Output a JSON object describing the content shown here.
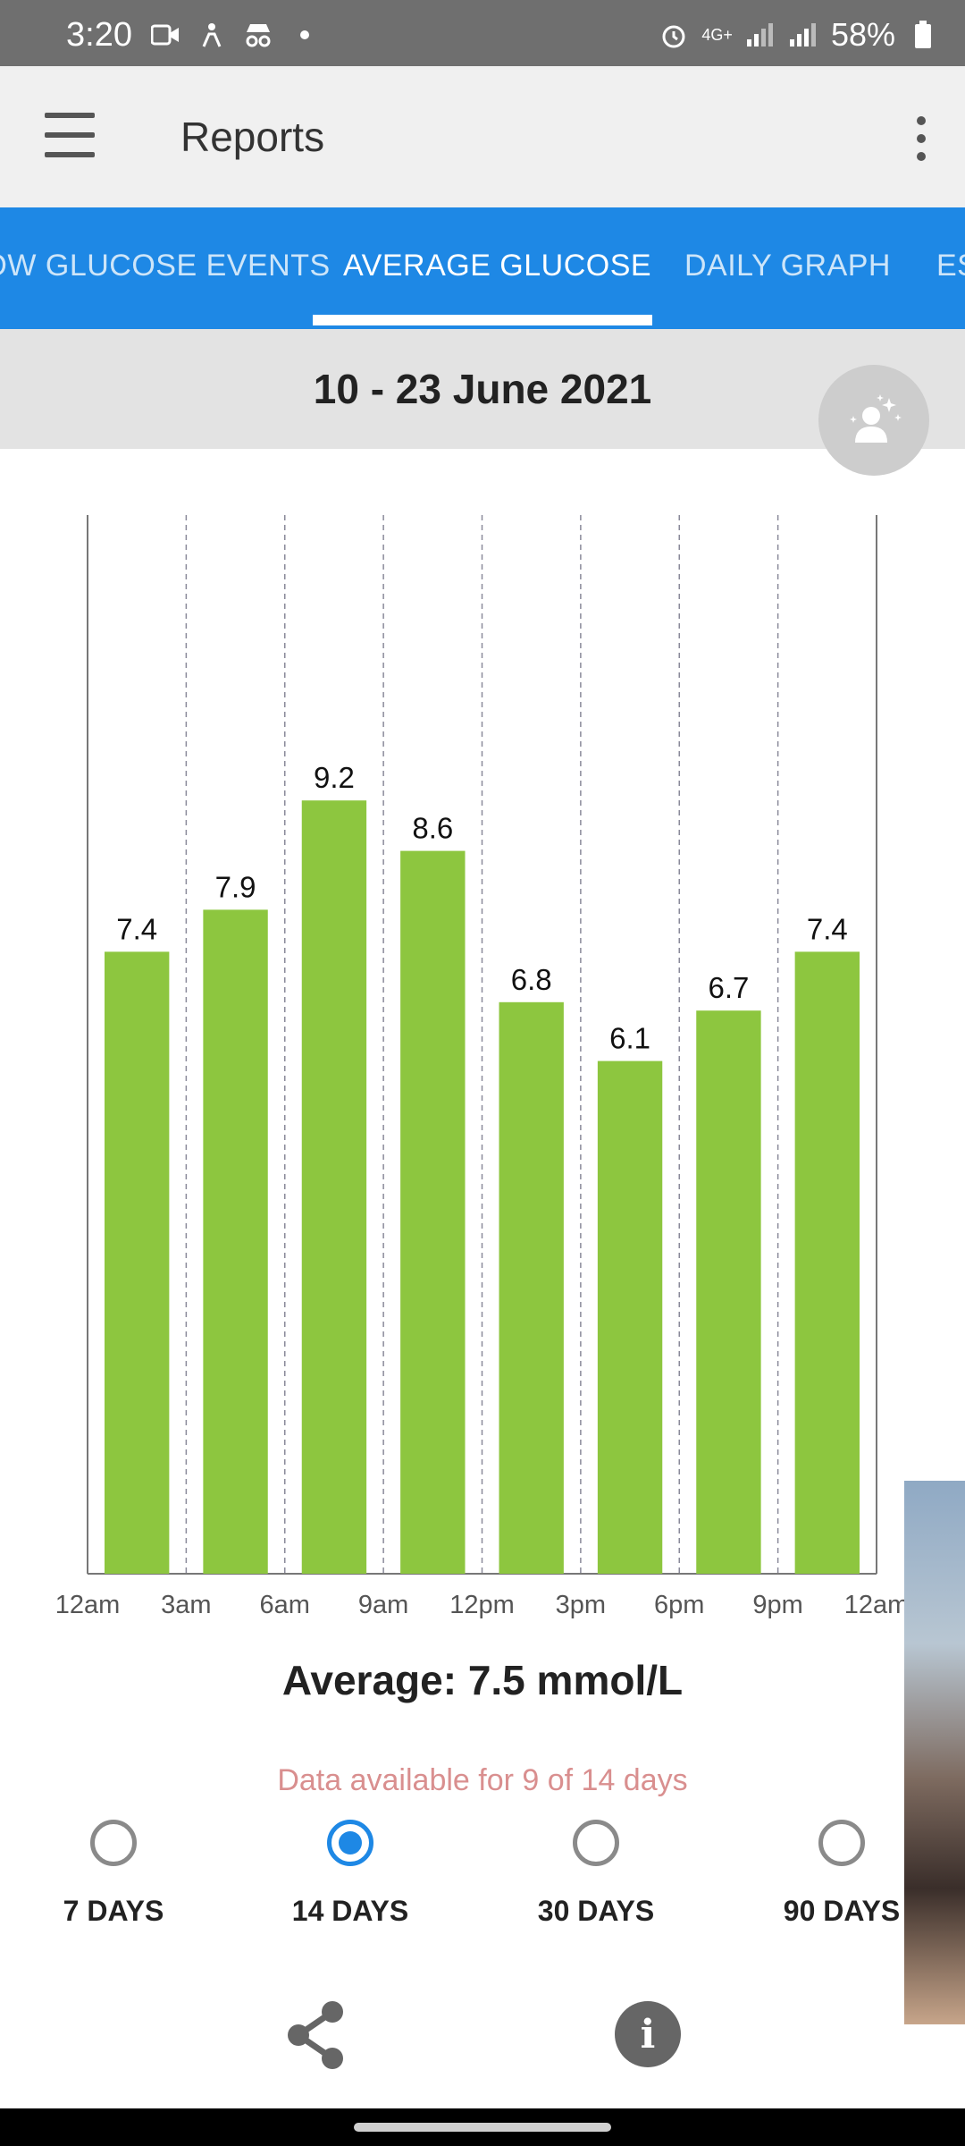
{
  "status_bar": {
    "time": "3:20",
    "battery": "58%",
    "network": "4G+"
  },
  "app_bar": {
    "title": "Reports"
  },
  "tabs": [
    {
      "label": "LOW GLUCOSE EVENTS",
      "active": false
    },
    {
      "label": "AVERAGE GLUCOSE",
      "active": true
    },
    {
      "label": "DAILY GRAPH",
      "active": false
    },
    {
      "label": "ES",
      "active": false
    }
  ],
  "date_range": "10 - 23 June 2021",
  "chart_data": {
    "type": "bar",
    "categories": [
      "12am-3am",
      "3am-6am",
      "6am-9am",
      "9am-12pm",
      "12pm-3pm",
      "3pm-6pm",
      "6pm-9pm",
      "9pm-12am"
    ],
    "values": [
      7.4,
      7.9,
      9.2,
      8.6,
      6.8,
      6.1,
      6.7,
      7.4
    ],
    "x_tick_labels": [
      "12am",
      "3am",
      "6am",
      "9am",
      "12pm",
      "3pm",
      "6pm",
      "9pm",
      "12am"
    ],
    "ylim": [
      0,
      10
    ],
    "bar_color": "#8dc63f",
    "grid": "vertical dashed"
  },
  "average_text": "Average: 7.5 mmol/L",
  "availability_text": "Data available for 9 of 14 days",
  "period_options": [
    {
      "label": "7 DAYS",
      "selected": false
    },
    {
      "label": "14 DAYS",
      "selected": true
    },
    {
      "label": "30 DAYS",
      "selected": false
    },
    {
      "label": "90 DAYS",
      "selected": false
    }
  ],
  "colors": {
    "accent": "#1e88e5",
    "bar": "#8dc63f",
    "availability": "#d98f8f"
  },
  "icons": {
    "menu": "menu-icon",
    "more": "more-vert-icon",
    "share": "share-icon",
    "info": "info-icon",
    "assistant": "assistant-sparkle-icon"
  }
}
